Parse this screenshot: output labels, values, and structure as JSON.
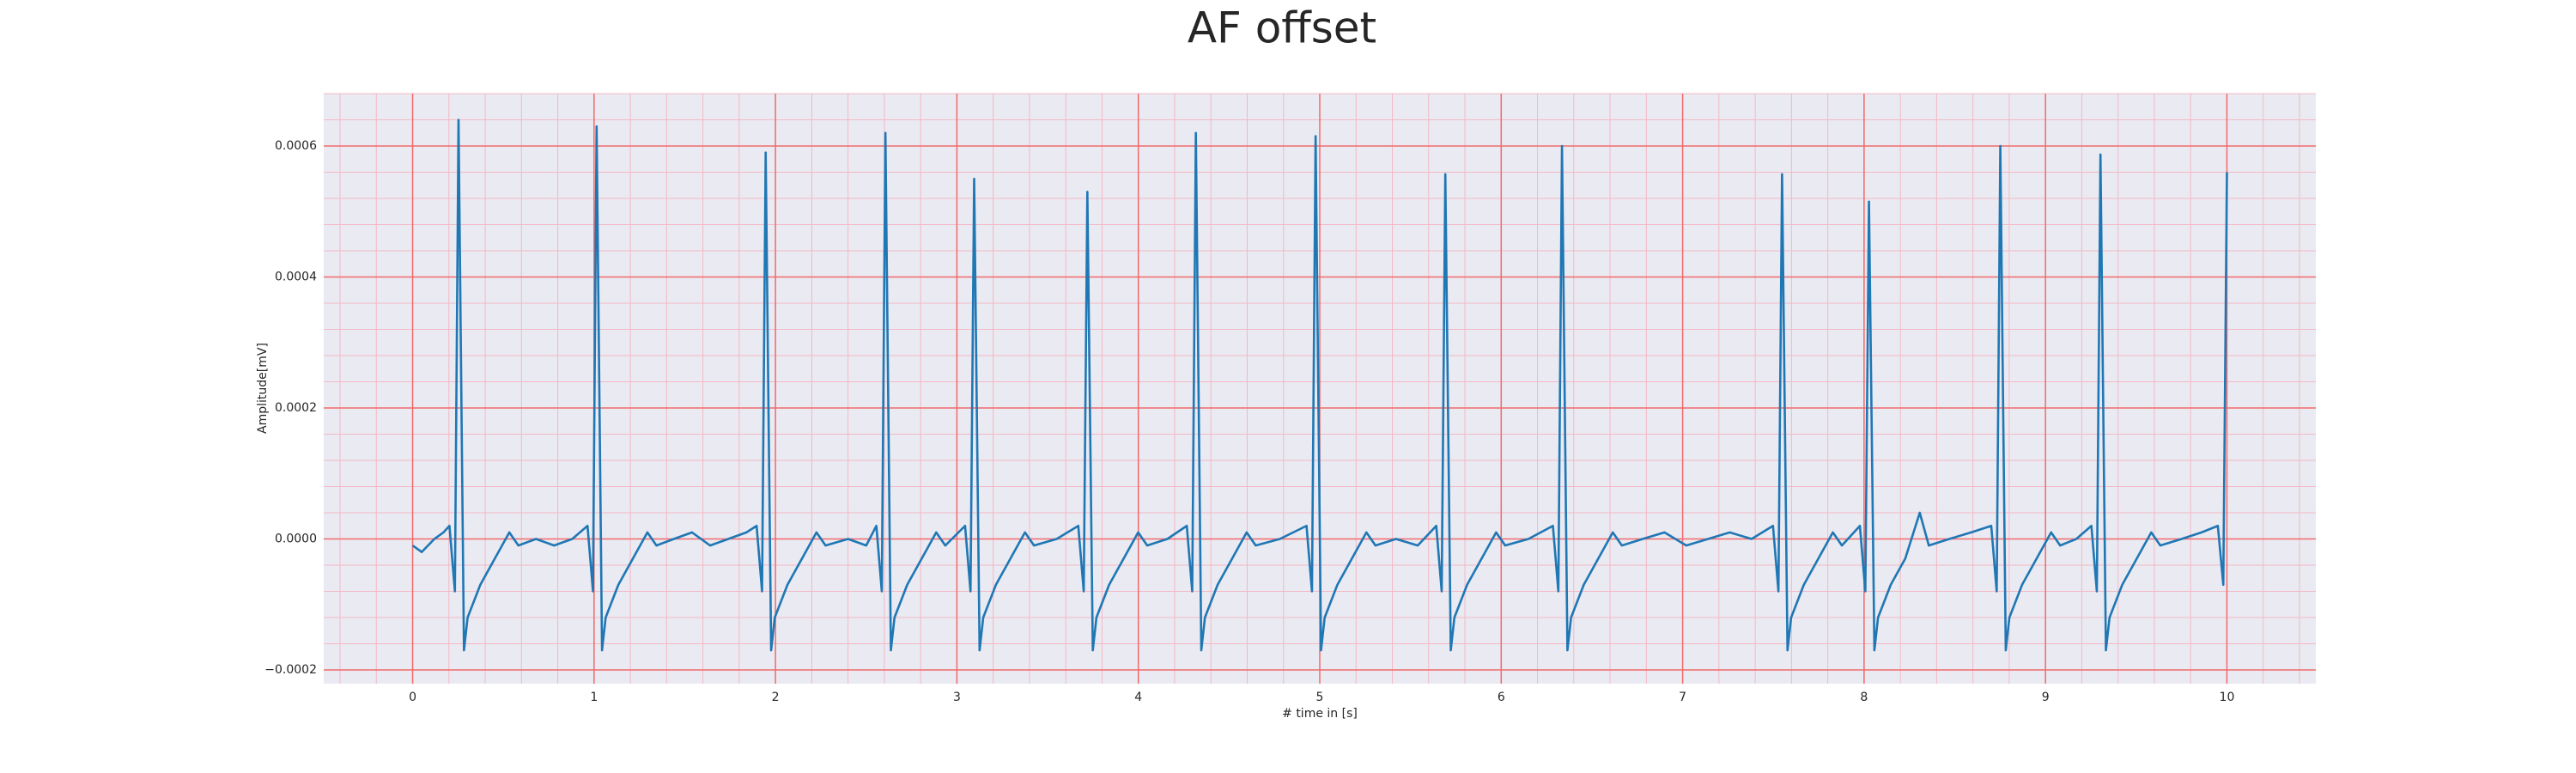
{
  "chart_data": {
    "type": "line",
    "title": "AF offset",
    "xlabel": "# time in [s]",
    "ylabel": "Amplitude[mV]",
    "color": "#1f77b4",
    "grid": true,
    "minor_grid": true,
    "xlim": [
      -0.49,
      10.49
    ],
    "ylim": [
      -0.000221,
      0.00068
    ],
    "xticks": [
      0,
      1,
      2,
      3,
      4,
      5,
      6,
      7,
      8,
      9,
      10
    ],
    "yticks": [
      {
        "value": -0.0002,
        "label": "−0.0002"
      },
      {
        "value": 0,
        "label": "0.0000"
      },
      {
        "value": 0.0002,
        "label": "0.0002"
      },
      {
        "value": 0.0004,
        "label": "0.0004"
      },
      {
        "value": 0.0006,
        "label": "0.0006"
      }
    ],
    "x": [
      0,
      0.05,
      0.12,
      0.17,
      0.203,
      0.233,
      0.253,
      0.283,
      0.303,
      0.373,
      0.453,
      0.533,
      0.583,
      0.68,
      0.78,
      0.88,
      0.964,
      0.994,
      1.014,
      1.044,
      1.064,
      1.134,
      1.214,
      1.294,
      1.344,
      1.44,
      1.54,
      1.64,
      1.74,
      1.84,
      1.896,
      1.926,
      1.946,
      1.976,
      1.996,
      2.066,
      2.146,
      2.226,
      2.276,
      2.4,
      2.5,
      2.556,
      2.586,
      2.606,
      2.636,
      2.656,
      2.726,
      2.806,
      2.886,
      2.936,
      3.045,
      3.075,
      3.095,
      3.125,
      3.145,
      3.215,
      3.295,
      3.375,
      3.425,
      3.55,
      3.669,
      3.699,
      3.719,
      3.749,
      3.769,
      3.839,
      3.919,
      3.999,
      4.049,
      4.16,
      4.267,
      4.297,
      4.317,
      4.347,
      4.367,
      4.437,
      4.517,
      4.597,
      4.647,
      4.78,
      4.927,
      4.957,
      4.977,
      5.007,
      5.027,
      5.097,
      5.177,
      5.257,
      5.307,
      5.42,
      5.54,
      5.642,
      5.672,
      5.692,
      5.722,
      5.742,
      5.812,
      5.892,
      5.972,
      6.022,
      6.15,
      6.285,
      6.315,
      6.335,
      6.365,
      6.385,
      6.455,
      6.535,
      6.615,
      6.665,
      6.78,
      6.9,
      7.02,
      7.14,
      7.26,
      7.38,
      7.498,
      7.528,
      7.548,
      7.578,
      7.598,
      7.668,
      7.748,
      7.828,
      7.878,
      7.977,
      8.007,
      8.027,
      8.057,
      8.077,
      8.147,
      8.227,
      8.307,
      8.357,
      8.47,
      8.59,
      8.701,
      8.731,
      8.751,
      8.781,
      8.801,
      8.871,
      8.951,
      9.031,
      9.081,
      9.17,
      9.253,
      9.283,
      9.303,
      9.333,
      9.353,
      9.423,
      9.503,
      9.583,
      9.633,
      9.75,
      9.86,
      9.95,
      9.98,
      10.0
    ],
    "values": [
      -1e-05,
      -2e-05,
      0.0,
      1e-05,
      2e-05,
      -8e-05,
      0.00064,
      -0.00017,
      -0.00012,
      -7e-05,
      -3e-05,
      1e-05,
      -1e-05,
      0.0,
      -1e-05,
      0.0,
      2e-05,
      -8e-05,
      0.00063,
      -0.00017,
      -0.00012,
      -7e-05,
      -3e-05,
      1e-05,
      -1e-05,
      0.0,
      1e-05,
      -1e-05,
      0.0,
      1e-05,
      2e-05,
      -8e-05,
      0.00059,
      -0.00017,
      -0.00012,
      -7e-05,
      -3e-05,
      1e-05,
      -1e-05,
      0.0,
      -1e-05,
      2e-05,
      -8e-05,
      0.00062,
      -0.00017,
      -0.00012,
      -7e-05,
      -3e-05,
      1e-05,
      -1e-05,
      2e-05,
      -8e-05,
      0.00055,
      -0.00017,
      -0.00012,
      -7e-05,
      -3e-05,
      1e-05,
      -1e-05,
      0.0,
      2e-05,
      -8e-05,
      0.00053,
      -0.00017,
      -0.00012,
      -7e-05,
      -3e-05,
      1e-05,
      -1e-05,
      0.0,
      2e-05,
      -8e-05,
      0.00062,
      -0.00017,
      -0.00012,
      -7e-05,
      -3e-05,
      1e-05,
      -1e-05,
      0.0,
      2e-05,
      -8e-05,
      0.000615,
      -0.00017,
      -0.00012,
      -7e-05,
      -3e-05,
      1e-05,
      -1e-05,
      0.0,
      -1e-05,
      2e-05,
      -8e-05,
      0.000557,
      -0.00017,
      -0.00012,
      -7e-05,
      -3e-05,
      1e-05,
      -1e-05,
      0.0,
      2e-05,
      -8e-05,
      0.0006,
      -0.00017,
      -0.00012,
      -7e-05,
      -3e-05,
      1e-05,
      -1e-05,
      0.0,
      1e-05,
      -1e-05,
      0.0,
      1e-05,
      0.0,
      2e-05,
      -8e-05,
      0.000557,
      -0.00017,
      -0.00012,
      -7e-05,
      -3e-05,
      1e-05,
      -1e-05,
      2e-05,
      -8e-05,
      0.000515,
      -0.00017,
      -0.00012,
      -7e-05,
      -3e-05,
      4e-05,
      -1e-05,
      0.0,
      1e-05,
      2e-05,
      -8e-05,
      0.0006,
      -0.00017,
      -0.00012,
      -7e-05,
      -3e-05,
      1e-05,
      -1e-05,
      0.0,
      2e-05,
      -8e-05,
      0.000587,
      -0.00017,
      -0.00012,
      -7e-05,
      -3e-05,
      1e-05,
      -1e-05,
      0.0,
      1e-05,
      2e-05,
      -7e-05,
      0.00056
    ]
  }
}
